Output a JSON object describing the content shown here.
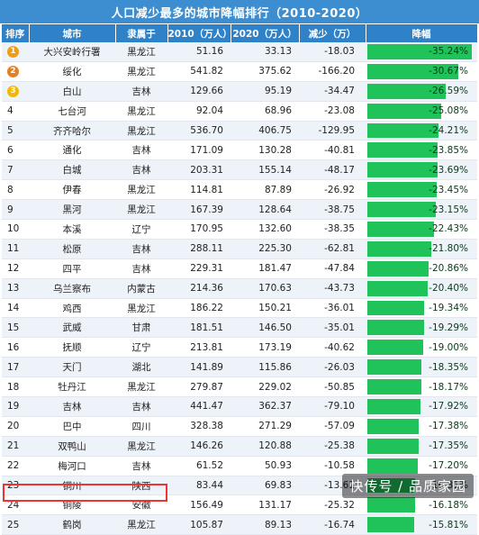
{
  "title": "人口减少最多的城市降幅排行（2010-2020）",
  "headers": [
    "排序",
    "城市",
    "隶属于",
    "2010（万人）",
    "2020（万人）",
    "减少（万）",
    "降幅"
  ],
  "colors": {
    "header": "#2f82c8",
    "bar": "#1fc35a",
    "gold": "#f39c12",
    "silver": "#e67e22",
    "bronze": "#f5b800",
    "highlight": "#e33333"
  },
  "rows": [
    {
      "rank": "1",
      "city": "大兴安岭行署",
      "province": "黑龙江",
      "p2010": "51.16",
      "p2020": "33.13",
      "chg": "-18.03",
      "pct": "-35.24%",
      "pct_value": 35.24,
      "medal": "gold"
    },
    {
      "rank": "2",
      "city": "绥化",
      "province": "黑龙江",
      "p2010": "541.82",
      "p2020": "375.62",
      "chg": "-166.20",
      "pct": "-30.67%",
      "pct_value": 30.67,
      "medal": "silver"
    },
    {
      "rank": "3",
      "city": "白山",
      "province": "吉林",
      "p2010": "129.66",
      "p2020": "95.19",
      "chg": "-34.47",
      "pct": "-26.59%",
      "pct_value": 26.59,
      "medal": "bronze"
    },
    {
      "rank": "4",
      "city": "七台河",
      "province": "黑龙江",
      "p2010": "92.04",
      "p2020": "68.96",
      "chg": "-23.08",
      "pct": "-25.08%",
      "pct_value": 25.08
    },
    {
      "rank": "5",
      "city": "齐齐哈尔",
      "province": "黑龙江",
      "p2010": "536.70",
      "p2020": "406.75",
      "chg": "-129.95",
      "pct": "-24.21%",
      "pct_value": 24.21
    },
    {
      "rank": "6",
      "city": "通化",
      "province": "吉林",
      "p2010": "171.09",
      "p2020": "130.28",
      "chg": "-40.81",
      "pct": "-23.85%",
      "pct_value": 23.85
    },
    {
      "rank": "7",
      "city": "白城",
      "province": "吉林",
      "p2010": "203.31",
      "p2020": "155.14",
      "chg": "-48.17",
      "pct": "-23.69%",
      "pct_value": 23.69
    },
    {
      "rank": "8",
      "city": "伊春",
      "province": "黑龙江",
      "p2010": "114.81",
      "p2020": "87.89",
      "chg": "-26.92",
      "pct": "-23.45%",
      "pct_value": 23.45
    },
    {
      "rank": "9",
      "city": "黑河",
      "province": "黑龙江",
      "p2010": "167.39",
      "p2020": "128.64",
      "chg": "-38.75",
      "pct": "-23.15%",
      "pct_value": 23.15
    },
    {
      "rank": "10",
      "city": "本溪",
      "province": "辽宁",
      "p2010": "170.95",
      "p2020": "132.60",
      "chg": "-38.35",
      "pct": "-22.43%",
      "pct_value": 22.43
    },
    {
      "rank": "11",
      "city": "松原",
      "province": "吉林",
      "p2010": "288.11",
      "p2020": "225.30",
      "chg": "-62.81",
      "pct": "-21.80%",
      "pct_value": 21.8
    },
    {
      "rank": "12",
      "city": "四平",
      "province": "吉林",
      "p2010": "229.31",
      "p2020": "181.47",
      "chg": "-47.84",
      "pct": "-20.86%",
      "pct_value": 20.86
    },
    {
      "rank": "13",
      "city": "乌兰察布",
      "province": "内蒙古",
      "p2010": "214.36",
      "p2020": "170.63",
      "chg": "-43.73",
      "pct": "-20.40%",
      "pct_value": 20.4
    },
    {
      "rank": "14",
      "city": "鸡西",
      "province": "黑龙江",
      "p2010": "186.22",
      "p2020": "150.21",
      "chg": "-36.01",
      "pct": "-19.34%",
      "pct_value": 19.34
    },
    {
      "rank": "15",
      "city": "武威",
      "province": "甘肃",
      "p2010": "181.51",
      "p2020": "146.50",
      "chg": "-35.01",
      "pct": "-19.29%",
      "pct_value": 19.29
    },
    {
      "rank": "16",
      "city": "抚顺",
      "province": "辽宁",
      "p2010": "213.81",
      "p2020": "173.19",
      "chg": "-40.62",
      "pct": "-19.00%",
      "pct_value": 19.0
    },
    {
      "rank": "17",
      "city": "天门",
      "province": "湖北",
      "p2010": "141.89",
      "p2020": "115.86",
      "chg": "-26.03",
      "pct": "-18.35%",
      "pct_value": 18.35
    },
    {
      "rank": "18",
      "city": "牡丹江",
      "province": "黑龙江",
      "p2010": "279.87",
      "p2020": "229.02",
      "chg": "-50.85",
      "pct": "-18.17%",
      "pct_value": 18.17
    },
    {
      "rank": "19",
      "city": "吉林",
      "province": "吉林",
      "p2010": "441.47",
      "p2020": "362.37",
      "chg": "-79.10",
      "pct": "-17.92%",
      "pct_value": 17.92
    },
    {
      "rank": "20",
      "city": "巴中",
      "province": "四川",
      "p2010": "328.38",
      "p2020": "271.29",
      "chg": "-57.09",
      "pct": "-17.38%",
      "pct_value": 17.38
    },
    {
      "rank": "21",
      "city": "双鸭山",
      "province": "黑龙江",
      "p2010": "146.26",
      "p2020": "120.88",
      "chg": "-25.38",
      "pct": "-17.35%",
      "pct_value": 17.35
    },
    {
      "rank": "22",
      "city": "梅河口",
      "province": "吉林",
      "p2010": "61.52",
      "p2020": "50.93",
      "chg": "-10.58",
      "pct": "-17.20%",
      "pct_value": 17.2
    },
    {
      "rank": "23",
      "city": "铜川",
      "province": "陕西",
      "p2010": "83.44",
      "p2020": "69.83",
      "chg": "-13.61",
      "pct": "-16.31%",
      "pct_value": 16.31
    },
    {
      "rank": "24",
      "city": "铜陵",
      "province": "安徽",
      "p2010": "156.49",
      "p2020": "131.17",
      "chg": "-25.32",
      "pct": "-16.18%",
      "pct_value": 16.18
    },
    {
      "rank": "25",
      "city": "鹤岗",
      "province": "黑龙江",
      "p2010": "105.87",
      "p2020": "89.13",
      "chg": "-16.74",
      "pct": "-15.81%",
      "pct_value": 15.81
    }
  ],
  "watermark": "快传号 / 品质家园"
}
